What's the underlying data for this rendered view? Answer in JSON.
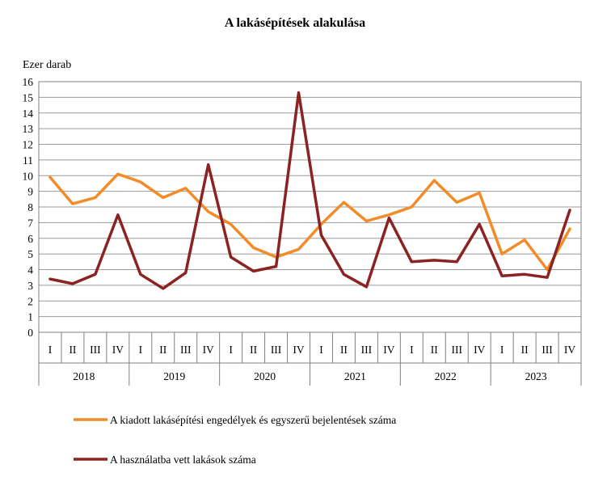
{
  "chart_data": {
    "type": "line",
    "title": "A lakásépítések alakulása",
    "ylabel": "Ezer darab",
    "ylim": [
      0,
      16
    ],
    "yticks": [
      0,
      1,
      2,
      3,
      4,
      5,
      6,
      7,
      8,
      9,
      10,
      11,
      12,
      13,
      14,
      15,
      16
    ],
    "grid": true,
    "legend_position": "bottom",
    "quarters": [
      "I",
      "II",
      "III",
      "IV",
      "I",
      "II",
      "III",
      "IV",
      "I",
      "II",
      "III",
      "IV",
      "I",
      "II",
      "III",
      "IV",
      "I",
      "II",
      "III",
      "IV",
      "I",
      "II",
      "III",
      "IV"
    ],
    "years": [
      "2018",
      "2019",
      "2020",
      "2021",
      "2022",
      "2023"
    ],
    "series": [
      {
        "name": "A kiadott lakásépítési engedélyek és egyszerű bejelentések száma",
        "color": "#f28c28",
        "values": [
          9.9,
          8.2,
          8.6,
          10.1,
          9.6,
          8.6,
          9.2,
          7.7,
          6.9,
          5.4,
          4.8,
          5.3,
          6.9,
          8.3,
          7.1,
          7.5,
          8.0,
          9.7,
          8.3,
          8.9,
          5.0,
          5.9,
          4.0,
          6.6
        ]
      },
      {
        "name": "A használatba vett lakások száma",
        "color": "#8b2323",
        "values": [
          3.4,
          3.1,
          3.7,
          7.5,
          3.7,
          2.8,
          3.8,
          10.7,
          4.8,
          3.9,
          4.2,
          15.3,
          6.2,
          3.7,
          2.9,
          7.3,
          4.5,
          4.6,
          4.5,
          6.9,
          3.6,
          3.7,
          3.5,
          7.8
        ]
      }
    ]
  }
}
